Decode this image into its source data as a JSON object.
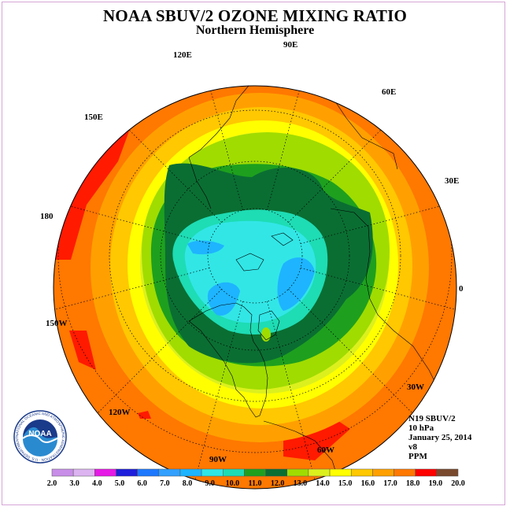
{
  "header": {
    "title": "NOAA SBUV/2 OZONE MIXING RATIO",
    "subtitle": "Northern Hemisphere"
  },
  "longitude_labels": {
    "lon_90e": "90E",
    "lon_120e": "120E",
    "lon_60e": "60E",
    "lon_150e": "150E",
    "lon_30e": "30E",
    "lon_180": "180",
    "lon_0": "0",
    "lon_150w": "150W",
    "lon_30w": "30W",
    "lon_120w": "120W",
    "lon_60w": "60W",
    "lon_90w": "90W"
  },
  "info": {
    "satellite": "N19 SBUV/2",
    "level": "10 hPa",
    "date": "January 25, 2014",
    "version": "v8",
    "units": "PPM"
  },
  "logo": {
    "text": "NOAA",
    "ring_text": "NATIONAL OCEANIC AND ATMOSPHERIC ADMINISTRATION · U.S. DEPARTMENT OF COMMERCE"
  },
  "colorbar": {
    "ticks": [
      "2.0",
      "3.0",
      "4.0",
      "5.0",
      "6.0",
      "7.0",
      "8.0",
      "9.0",
      "10.0",
      "11.0",
      "12.0",
      "13.0",
      "14.0",
      "15.0",
      "16.0",
      "17.0",
      "18.0",
      "19.0",
      "20.0"
    ],
    "colors": [
      "#c88ee8",
      "#dcb4f0",
      "#e619e6",
      "#1e1edc",
      "#1e78ff",
      "#32a0ff",
      "#1eb4ff",
      "#32e6e6",
      "#1edcb4",
      "#1ea01e",
      "#0a6e32",
      "#a0dc00",
      "#dcf01e",
      "#ffff00",
      "#ffc800",
      "#ffa000",
      "#ff7800",
      "#ff0000",
      "#7a4a2e"
    ]
  },
  "map_colors": {
    "ring_red": "#ff1a00",
    "ring_orange": "#ff7800",
    "ring_lightorange": "#ffa000",
    "ring_gold": "#ffc800",
    "ring_yellow": "#ffff00",
    "ring_lightyellow": "#dcf01e",
    "ring_lime": "#a0dc00",
    "ring_green": "#1ea01e",
    "ring_darkgreen": "#0a6e32",
    "ring_teal": "#1edcb4",
    "ring_cyan": "#32e6e6",
    "ring_blue": "#1eb4ff"
  }
}
